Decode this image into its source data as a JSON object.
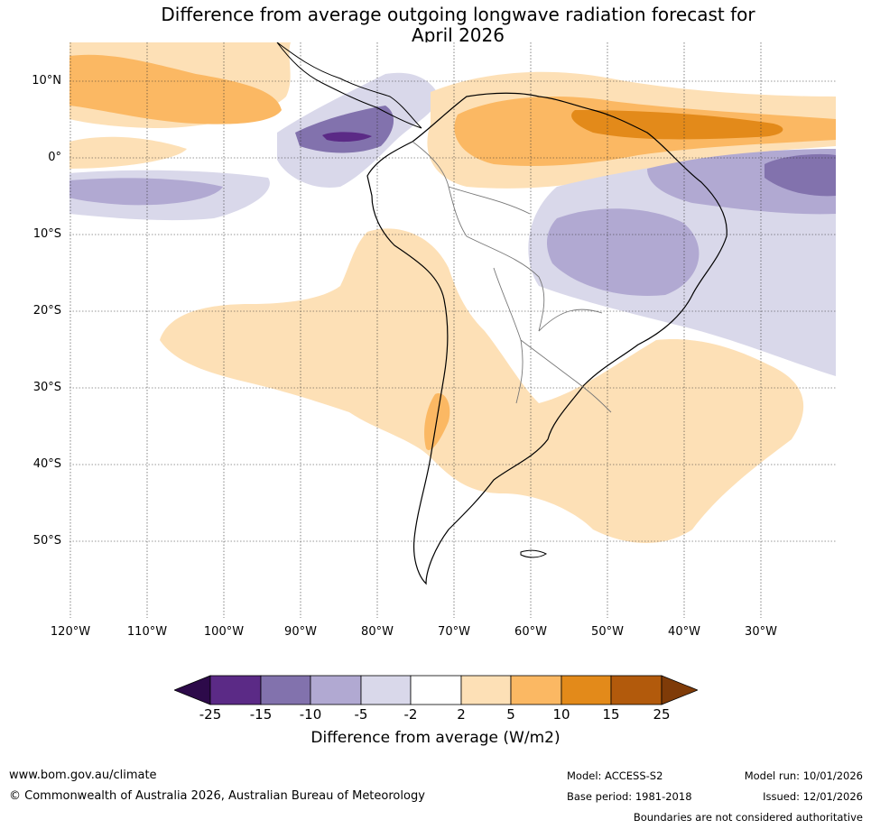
{
  "title": {
    "line1": "Difference from average outgoing longwave radiation forecast for",
    "line2": "April 2026"
  },
  "map": {
    "region": "South America",
    "lat_labels": [
      "10°N",
      "0°",
      "10°S",
      "20°S",
      "30°S",
      "40°S",
      "50°S"
    ],
    "lon_labels": [
      "120°W",
      "110°W",
      "100°W",
      "90°W",
      "80°W",
      "70°W",
      "60°W",
      "50°W",
      "40°W",
      "30°W"
    ]
  },
  "colorbar": {
    "ticks": [
      "-25",
      "-15",
      "-10",
      "-5",
      "-2",
      "2",
      "5",
      "10",
      "15",
      "25"
    ],
    "label": "Difference from average (W/m2)",
    "colors": {
      "below_-25": "#2d0a4a",
      "-25_to_-15": "#5b2a86",
      "-15_to_-10": "#8272ad",
      "-10_to_-5": "#b1a9d2",
      "-5_to_-2": "#d9d8ea",
      "-2_to_2": "#ffffff",
      "2_to_5": "#fde0b6",
      "5_to_10": "#fbb863",
      "10_to_15": "#e38a1a",
      "15_to_25": "#b25a0c",
      "above_25": "#7f3b08"
    }
  },
  "footer": {
    "website": "www.bom.gov.au/climate",
    "copyright": "© Commonwealth of Australia 2026, Australian Bureau of Meteorology",
    "model": "Model: ACCESS-S2",
    "base_period": "Base period: 1981-2018",
    "model_run": "Model run: 10/01/2026",
    "issued": "Issued: 12/01/2026",
    "boundaries": "Boundaries are not considered authoritative"
  }
}
